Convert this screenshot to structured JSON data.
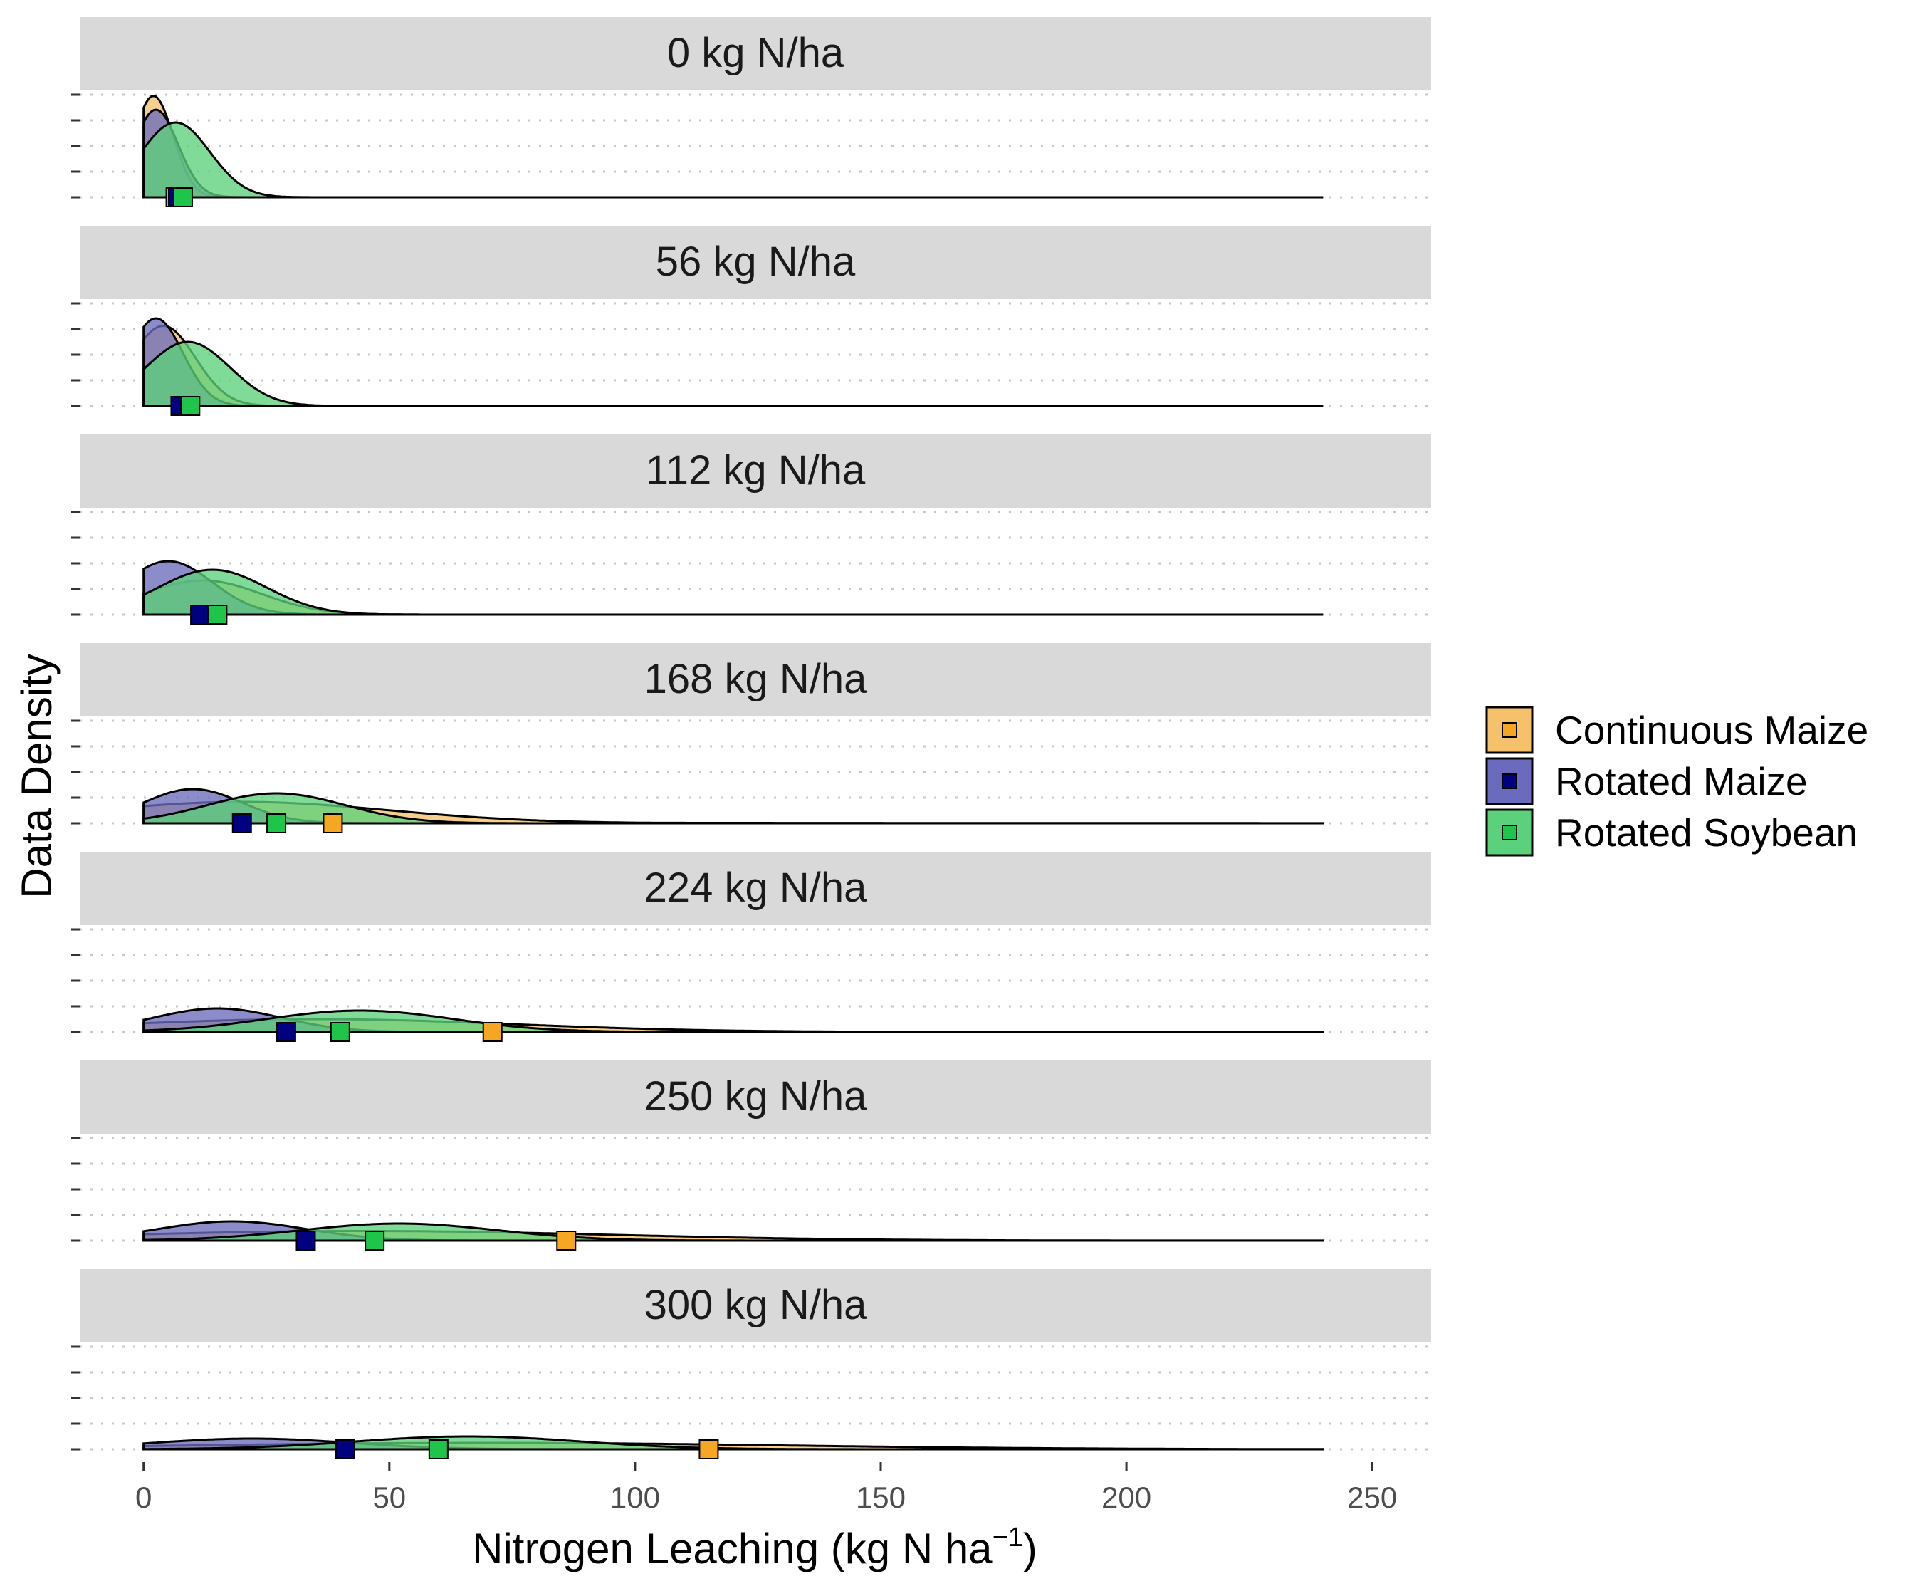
{
  "chart_data": {
    "type": "density",
    "xlabel": "Nitrogen Leaching (kg N ha",
    "xlabel_superscript": "−1",
    "xlabel_suffix": ")",
    "ylabel": "Data Density",
    "xlim": [
      -13,
      262
    ],
    "x_ticks": [
      0,
      50,
      100,
      150,
      200,
      250
    ],
    "y_ticks_per_panel": 5,
    "grid": "dotted horizontal",
    "legend_position": "right",
    "series": [
      {
        "name": "Continuous Maize",
        "fill": "#f5c26b",
        "marker": "#f5a623"
      },
      {
        "name": "Rotated Maize",
        "fill": "#6b6bbd",
        "marker": "#000080"
      },
      {
        "name": "Rotated Soybean",
        "fill": "#5cd17b",
        "marker": "#1fc44a"
      }
    ],
    "overlap_fill": "#3a8a5a",
    "panels": [
      {
        "label": "0 kg N/ha",
        "densities": [
          {
            "series": "Continuous Maize",
            "peak": 2.0,
            "sd": 4.0,
            "height": 0.95,
            "tail": 0
          },
          {
            "series": "Rotated Maize",
            "peak": 2.5,
            "sd": 4.5,
            "height": 0.82,
            "tail": 0
          },
          {
            "series": "Rotated Soybean",
            "peak": 6.5,
            "sd": 7.0,
            "height": 0.7,
            "tail": 0
          }
        ],
        "means": {
          "Continuous Maize": 6.5,
          "Rotated Maize": 7.0,
          "Rotated Soybean": 8.0
        }
      },
      {
        "label": "56 kg N/ha",
        "densities": [
          {
            "series": "Continuous Maize",
            "peak": 4.0,
            "sd": 6.5,
            "height": 0.75,
            "tail": 0
          },
          {
            "series": "Rotated Maize",
            "peak": 2.5,
            "sd": 5.5,
            "height": 0.82,
            "tail": 0
          },
          {
            "series": "Rotated Soybean",
            "peak": 9.0,
            "sd": 8.5,
            "height": 0.6,
            "tail": 0
          }
        ],
        "means": {
          "Continuous Maize": 9.0,
          "Rotated Maize": 7.5,
          "Rotated Soybean": 9.5
        }
      },
      {
        "label": "112 kg N/ha",
        "densities": [
          {
            "series": "Continuous Maize",
            "peak": 12.0,
            "sd": 12.0,
            "height": 0.32,
            "tail": 0
          },
          {
            "series": "Rotated Maize",
            "peak": 5.0,
            "sd": 9.0,
            "height": 0.5,
            "tail": 0
          },
          {
            "series": "Rotated Soybean",
            "peak": 14.0,
            "sd": 11.0,
            "height": 0.42,
            "tail": 0
          }
        ],
        "means": {
          "Continuous Maize": 15.0,
          "Rotated Maize": 11.5,
          "Rotated Soybean": 15.0
        }
      },
      {
        "label": "168 kg N/ha",
        "densities": [
          {
            "series": "Continuous Maize",
            "peak": 20.0,
            "sd": 30.0,
            "height": 0.2,
            "tail": 0.05
          },
          {
            "series": "Rotated Maize",
            "peak": 10.0,
            "sd": 10.0,
            "height": 0.32,
            "tail": 0
          },
          {
            "series": "Rotated Soybean",
            "peak": 27.0,
            "sd": 14.0,
            "height": 0.28,
            "tail": 0
          }
        ],
        "means": {
          "Continuous Maize": 38.5,
          "Rotated Maize": 20.0,
          "Rotated Soybean": 27.0
        }
      },
      {
        "label": "224 kg N/ha",
        "densities": [
          {
            "series": "Continuous Maize",
            "peak": 35.0,
            "sd": 40.0,
            "height": 0.12,
            "tail": 0.06
          },
          {
            "series": "Rotated Maize",
            "peak": 15.0,
            "sd": 13.0,
            "height": 0.22,
            "tail": 0
          },
          {
            "series": "Rotated Soybean",
            "peak": 44.0,
            "sd": 19.0,
            "height": 0.2,
            "tail": 0
          }
        ],
        "means": {
          "Continuous Maize": 71.0,
          "Rotated Maize": 29.0,
          "Rotated Soybean": 40.0
        }
      },
      {
        "label": "250 kg N/ha",
        "densities": [
          {
            "series": "Continuous Maize",
            "peak": 45.0,
            "sd": 50.0,
            "height": 0.09,
            "tail": 0.06
          },
          {
            "series": "Rotated Maize",
            "peak": 18.0,
            "sd": 15.0,
            "height": 0.18,
            "tail": 0
          },
          {
            "series": "Rotated Soybean",
            "peak": 52.0,
            "sd": 20.0,
            "height": 0.16,
            "tail": 0
          }
        ],
        "means": {
          "Continuous Maize": 86.0,
          "Rotated Maize": 33.0,
          "Rotated Soybean": 47.0
        }
      },
      {
        "label": "300 kg N/ha",
        "densities": [
          {
            "series": "Continuous Maize",
            "peak": 70.0,
            "sd": 60.0,
            "height": 0.06,
            "tail": 0.05
          },
          {
            "series": "Rotated Maize",
            "peak": 22.0,
            "sd": 20.0,
            "height": 0.1,
            "tail": 0
          },
          {
            "series": "Rotated Soybean",
            "peak": 66.0,
            "sd": 23.0,
            "height": 0.12,
            "tail": 0
          }
        ],
        "means": {
          "Continuous Maize": 115.0,
          "Rotated Maize": 41.0,
          "Rotated Soybean": 60.0
        }
      }
    ]
  }
}
